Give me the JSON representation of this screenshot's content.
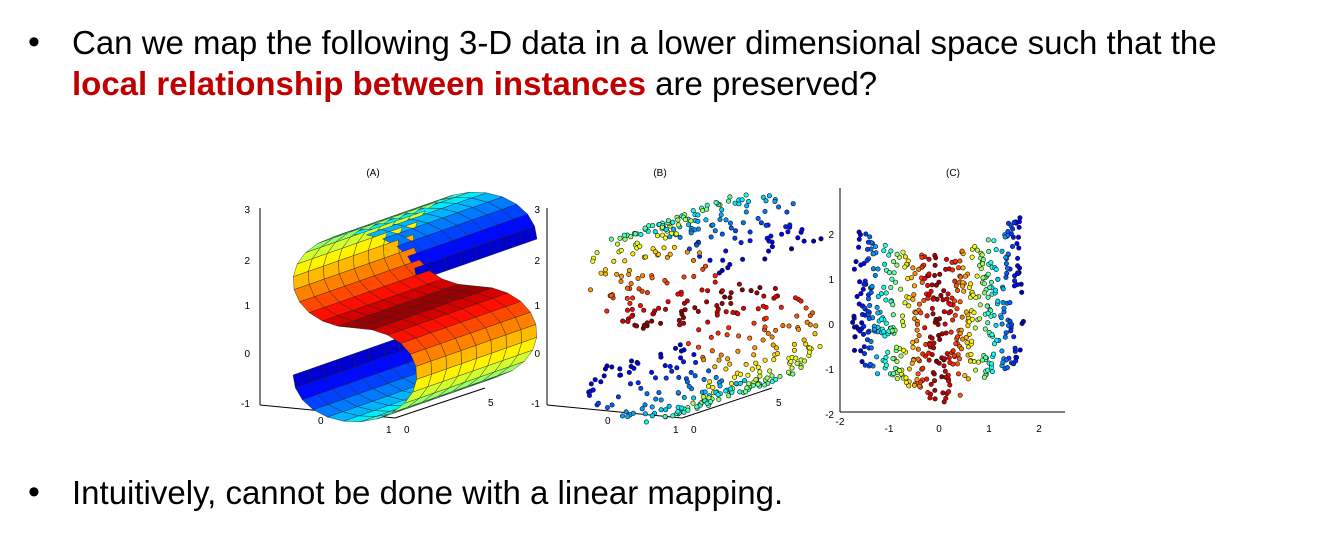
{
  "bullets": [
    {
      "line1": "Can we map the following 3-D data in a lower dimensional space such that the",
      "highlight": "local relationship between instances",
      "line2_rest": " are preserved?"
    },
    {
      "text": "Intuitively, cannot be done with a linear mapping."
    }
  ],
  "panels": {
    "A": {
      "title": "(A)",
      "ylabels": [
        "3",
        "2",
        "1",
        "0",
        "-1"
      ],
      "xlabels": [
        "0",
        "1",
        "0",
        "5"
      ]
    },
    "B": {
      "title": "(B)",
      "ylabels": [
        "3",
        "2",
        "1",
        "0",
        "-1"
      ],
      "xlabels": [
        "0",
        "1",
        "0",
        "5"
      ]
    },
    "C": {
      "title": "(C)",
      "ylabels": [
        "2",
        "1",
        "0",
        "-1",
        "-2"
      ],
      "xlabels": [
        "-2",
        "-1",
        "0",
        "1",
        "2"
      ]
    }
  },
  "colors": {
    "highlight": "#c00000"
  }
}
